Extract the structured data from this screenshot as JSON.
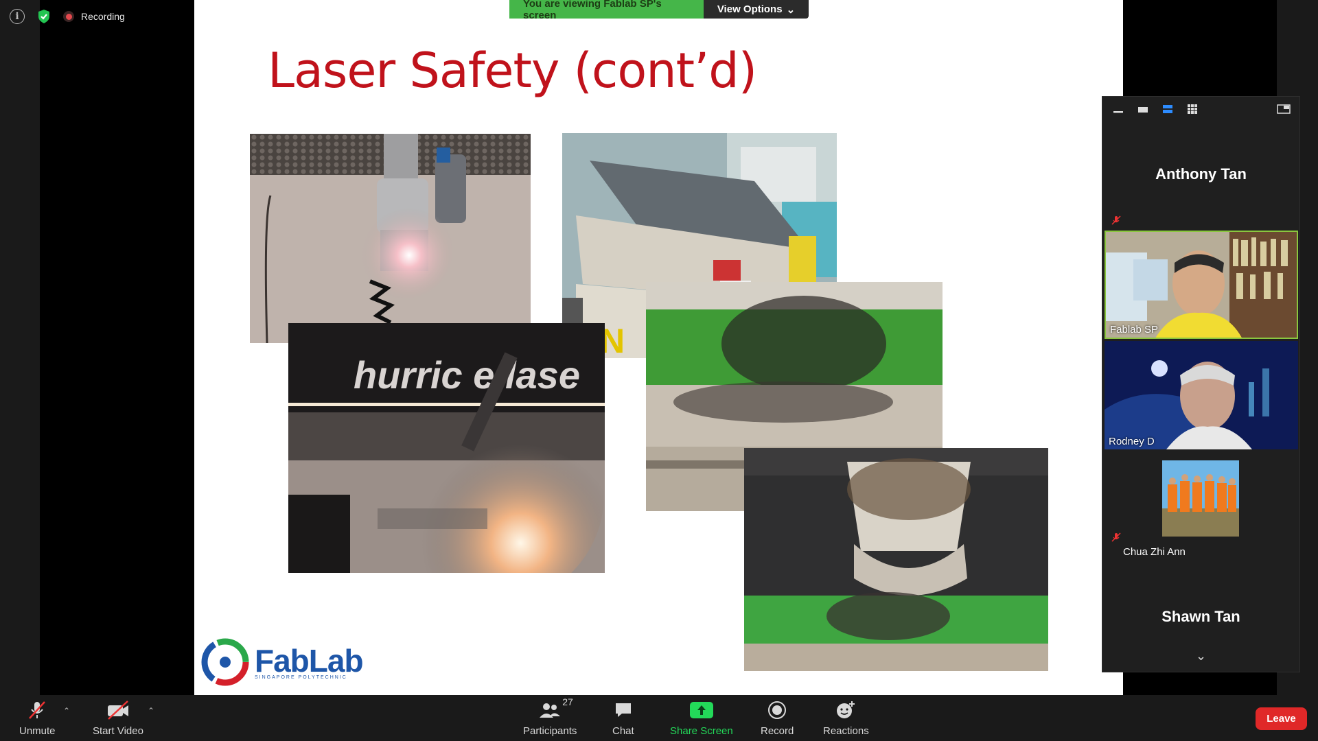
{
  "top": {
    "recording_label": "Recording"
  },
  "banner": {
    "viewing_text": "You are viewing Fablab SP's screen",
    "view_options_label": "View Options"
  },
  "slide": {
    "title": "Laser Safety (cont’d)",
    "photo3_text": "hurric  e lase",
    "logo_text": "FabLab",
    "logo_subtext": "SINGAPORE POLYTECHNIC"
  },
  "panel": {
    "participants": [
      {
        "name": "Anthony Tan",
        "type": "name-only",
        "muted": true
      },
      {
        "name": "Fablab SP",
        "type": "video",
        "active": true
      },
      {
        "name": "Rodney D",
        "type": "video"
      },
      {
        "name": "Chua Zhi Ann",
        "type": "avatar",
        "muted": true
      },
      {
        "name": "Shawn Tan",
        "type": "name-only"
      }
    ]
  },
  "toolbar": {
    "unmute_label": "Unmute",
    "start_video_label": "Start Video",
    "participants_label": "Participants",
    "participants_count": "27",
    "chat_label": "Chat",
    "share_screen_label": "Share Screen",
    "record_label": "Record",
    "reactions_label": "Reactions",
    "leave_label": "Leave"
  },
  "colors": {
    "accent_green": "#23d959",
    "banner_green": "#45b649",
    "title_red": "#c0121b",
    "leave_red": "#e02828",
    "active_border": "#8ac63f"
  }
}
